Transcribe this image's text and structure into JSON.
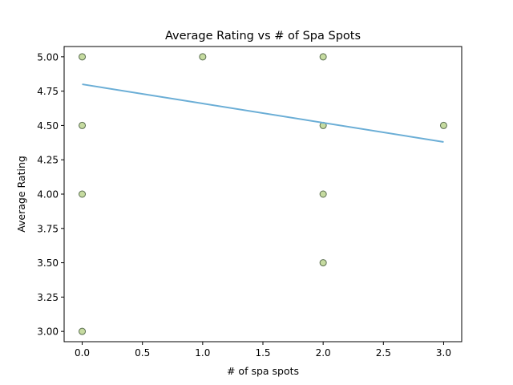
{
  "chart_data": {
    "type": "scatter",
    "title": "Average Rating vs # of Spa Spots",
    "xlabel": "# of spa spots",
    "ylabel": "Average Rating",
    "xlim": [
      -0.15,
      3.15
    ],
    "ylim": [
      2.925,
      5.075
    ],
    "xticks": [
      {
        "value": 0.0,
        "label": "0.0"
      },
      {
        "value": 0.5,
        "label": "0.5"
      },
      {
        "value": 1.0,
        "label": "1.0"
      },
      {
        "value": 1.5,
        "label": "1.5"
      },
      {
        "value": 2.0,
        "label": "2.0"
      },
      {
        "value": 2.5,
        "label": "2.5"
      },
      {
        "value": 3.0,
        "label": "3.0"
      }
    ],
    "yticks": [
      {
        "value": 3.0,
        "label": "3.00"
      },
      {
        "value": 3.25,
        "label": "3.25"
      },
      {
        "value": 3.5,
        "label": "3.50"
      },
      {
        "value": 3.75,
        "label": "3.75"
      },
      {
        "value": 4.0,
        "label": "4.00"
      },
      {
        "value": 4.25,
        "label": "4.25"
      },
      {
        "value": 4.5,
        "label": "4.50"
      },
      {
        "value": 4.75,
        "label": "4.75"
      },
      {
        "value": 5.0,
        "label": "5.00"
      }
    ],
    "points": [
      {
        "x": 0,
        "y": 5.0
      },
      {
        "x": 0,
        "y": 4.5
      },
      {
        "x": 0,
        "y": 4.0
      },
      {
        "x": 0,
        "y": 3.0
      },
      {
        "x": 1,
        "y": 5.0
      },
      {
        "x": 2,
        "y": 5.0
      },
      {
        "x": 2,
        "y": 4.5
      },
      {
        "x": 2,
        "y": 4.0
      },
      {
        "x": 2,
        "y": 3.5
      },
      {
        "x": 3,
        "y": 4.5
      }
    ],
    "trendline": {
      "x": [
        0,
        3
      ],
      "y": [
        4.8,
        4.38
      ]
    },
    "grid": false,
    "colors": {
      "marker_fill": "#c6dba0",
      "marker_edge": "#5a6e50",
      "trendline": "#6baed6"
    }
  }
}
